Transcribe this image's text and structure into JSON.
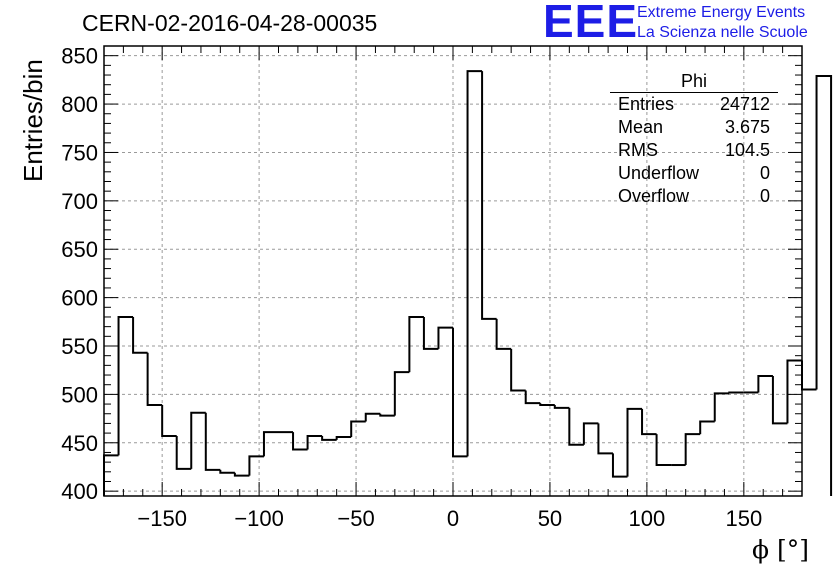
{
  "title": "CERN-02-2016-04-28-00035",
  "logo": {
    "mark": "EEE",
    "line1": "Extreme Energy Events",
    "line2": "La Scienza nelle Scuole",
    "color": "#1d1de6"
  },
  "stats_box": {
    "name": "Phi",
    "rows": [
      {
        "label": "Entries",
        "value": "24712"
      },
      {
        "label": "Mean",
        "value": "3.675"
      },
      {
        "label": "RMS",
        "value": "104.5"
      },
      {
        "label": "Underflow",
        "value": "0"
      },
      {
        "label": "Overflow",
        "value": "0"
      }
    ]
  },
  "chart_data": {
    "type": "histogram",
    "title": "CERN-02-2016-04-28-00035",
    "xlabel": "ϕ [°]",
    "ylabel": "Entries/bin",
    "xlim": [
      -180,
      180
    ],
    "ylim": [
      395,
      860
    ],
    "bin_width": 7.5,
    "x_ticks": [
      -150,
      -100,
      -50,
      0,
      50,
      100,
      150
    ],
    "x_tick_labels": [
      "−150",
      "−100",
      "−50",
      "0",
      "50",
      "100",
      "150"
    ],
    "y_ticks": [
      400,
      450,
      500,
      550,
      600,
      650,
      700,
      750,
      800,
      850
    ],
    "y_tick_labels": [
      "400",
      "450",
      "500",
      "550",
      "600",
      "650",
      "700",
      "750",
      "800",
      "850"
    ],
    "grid": true,
    "line_color": "#000000",
    "values": [
      437,
      580,
      543,
      489,
      457,
      423,
      481,
      422,
      419,
      416,
      436,
      461,
      461,
      443,
      457,
      453,
      456,
      472,
      480,
      478,
      523,
      580,
      547,
      569,
      436,
      834,
      578,
      547,
      504,
      491,
      489,
      486,
      448,
      470,
      439,
      415,
      485,
      459,
      427,
      427,
      459,
      472,
      501,
      502,
      502,
      519,
      470,
      535,
      505,
      829
    ]
  }
}
